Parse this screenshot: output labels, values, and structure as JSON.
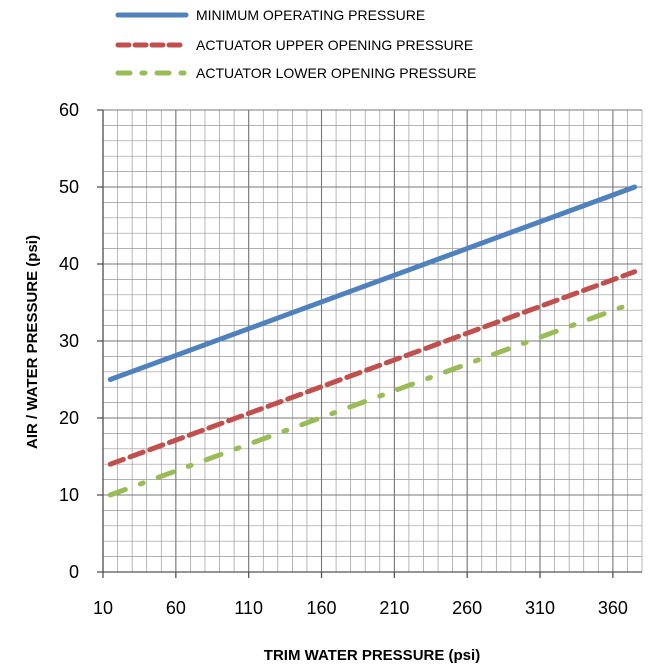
{
  "chart_data": {
    "type": "line",
    "title": "",
    "xlabel": "TRIM WATER PRESSURE (psi)",
    "ylabel": "AIR / WATER PRESSURE (psi)",
    "xlim": [
      10,
      380
    ],
    "ylim": [
      0,
      60
    ],
    "x_ticks": [
      10,
      60,
      110,
      160,
      210,
      260,
      310,
      360
    ],
    "y_ticks": [
      0,
      10,
      20,
      30,
      40,
      50,
      60
    ],
    "grid": true,
    "legend_position": "top",
    "series": [
      {
        "name": "MINIMUM OPERATING PRESSURE",
        "color": "#4F81BD",
        "style": "solid",
        "x": [
          15,
          375
        ],
        "y": [
          25,
          50
        ]
      },
      {
        "name": "ACTUATOR UPPER OPENING PRESSURE",
        "color": "#C0504D",
        "style": "dashed",
        "x": [
          15,
          375
        ],
        "y": [
          14,
          39
        ]
      },
      {
        "name": "ACTUATOR LOWER OPENING PRESSURE",
        "color": "#9BBB59",
        "style": "dash-dot",
        "x": [
          15,
          375
        ],
        "y": [
          10,
          35
        ]
      }
    ]
  }
}
